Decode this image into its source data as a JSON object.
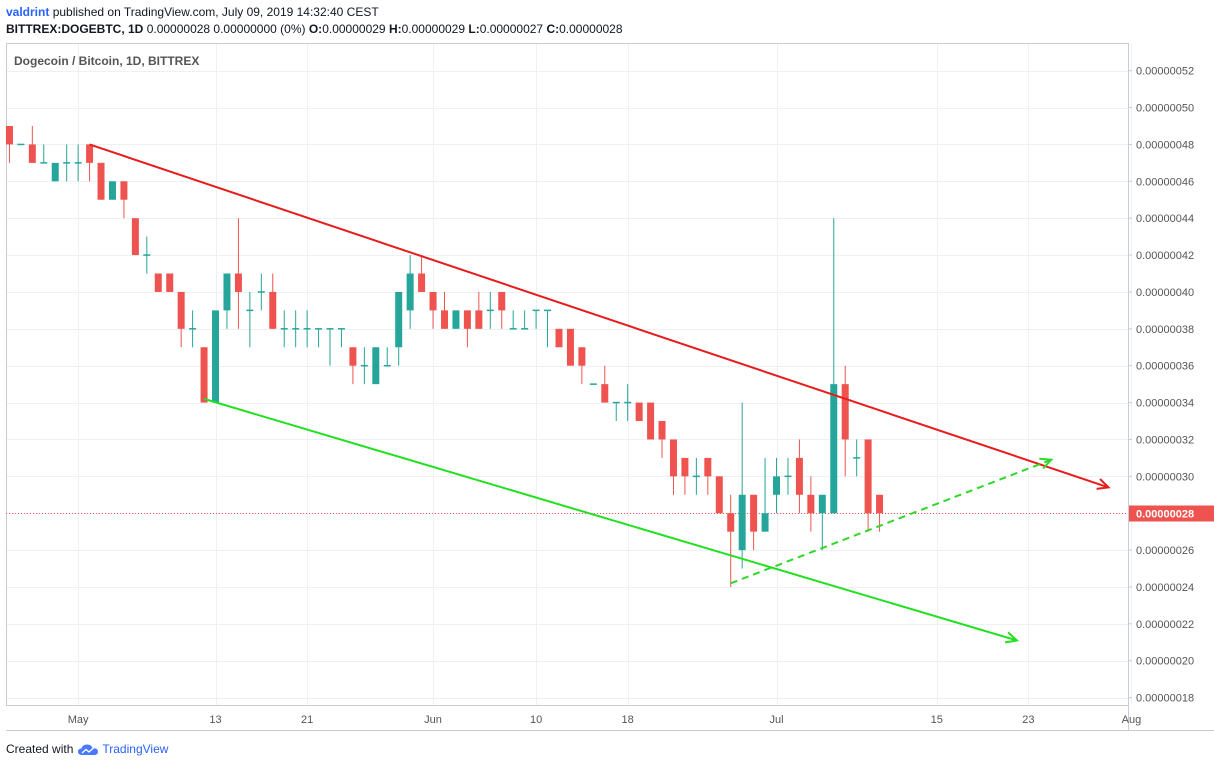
{
  "header": {
    "author": "valdrint",
    "published_text": "published on TradingView.com, July 09, 2019 14:32:40 CEST",
    "symbol": "BITTREX:DOGEBTC, 1D",
    "change": "0.00000028 0.00000000 (0%)",
    "ohlc": [
      {
        "key": "O:",
        "value": "0.00000029"
      },
      {
        "key": "H:",
        "value": "0.00000029"
      },
      {
        "key": "L:",
        "value": "0.00000027"
      },
      {
        "key": "C:",
        "value": "0.00000028"
      }
    ]
  },
  "footer": {
    "created_with": "Created with",
    "brand": "TradingView"
  },
  "colors": {
    "up": "#26a69a",
    "down": "#ef5350",
    "resistance": "#e81c1c",
    "support": "#22e01f",
    "projection": "#2fd82a",
    "price_line": "#ef5350",
    "grid": "#eef0f3",
    "axis_text": "#555555",
    "brand": "#2962ff"
  },
  "chart_data": {
    "type": "candlestick",
    "title": "Dogecoin / Bitcoin, 1D, BITTREX",
    "unit_note": "prices in satoshi (1e-8 BTC)",
    "ylim": [
      17.6,
      53.5
    ],
    "y_ticks": [
      18,
      20,
      22,
      24,
      26,
      28,
      30,
      32,
      34,
      36,
      38,
      40,
      42,
      44,
      46,
      48,
      50,
      52
    ],
    "y_tick_labels": [
      "0.00000018",
      "0.00000020",
      "0.00000022",
      "0.00000024",
      "0.00000026",
      "0.00000028",
      "0.00000030",
      "0.00000032",
      "0.00000034",
      "0.00000036",
      "0.00000038",
      "0.00000040",
      "0.00000042",
      "0.00000044",
      "0.00000046",
      "0.00000048",
      "0.00000050",
      "0.00000052"
    ],
    "x_range_days": [
      -6.3,
      91.7
    ],
    "x_ticks": [
      {
        "day": 0,
        "label": "May"
      },
      {
        "day": 12,
        "label": "13"
      },
      {
        "day": 20,
        "label": "21"
      },
      {
        "day": 31,
        "label": "Jun"
      },
      {
        "day": 40,
        "label": "10"
      },
      {
        "day": 48,
        "label": "18"
      },
      {
        "day": 61,
        "label": "Jul"
      },
      {
        "day": 75,
        "label": "15"
      },
      {
        "day": 83,
        "label": "23"
      },
      {
        "day": 92,
        "label": "Aug"
      }
    ],
    "last_price": 28,
    "last_price_label": "0.00000028",
    "candles": [
      {
        "day": -6,
        "o": 49,
        "h": 49,
        "l": 47,
        "c": 48
      },
      {
        "day": -5,
        "o": 48,
        "h": 48,
        "l": 48,
        "c": 48
      },
      {
        "day": -4,
        "o": 48,
        "h": 49,
        "l": 47,
        "c": 47
      },
      {
        "day": -3,
        "o": 47,
        "h": 48,
        "l": 47,
        "c": 47
      },
      {
        "day": -2,
        "o": 46,
        "h": 47,
        "l": 46,
        "c": 47
      },
      {
        "day": -1,
        "o": 47,
        "h": 48,
        "l": 46,
        "c": 47
      },
      {
        "day": 0,
        "o": 47,
        "h": 48,
        "l": 46,
        "c": 47
      },
      {
        "day": 1,
        "o": 48,
        "h": 48,
        "l": 46,
        "c": 47
      },
      {
        "day": 2,
        "o": 47,
        "h": 47,
        "l": 45,
        "c": 45
      },
      {
        "day": 3,
        "o": 45,
        "h": 46,
        "l": 45,
        "c": 46
      },
      {
        "day": 4,
        "o": 46,
        "h": 46,
        "l": 44,
        "c": 45
      },
      {
        "day": 5,
        "o": 44,
        "h": 44,
        "l": 42,
        "c": 42
      },
      {
        "day": 6,
        "o": 42,
        "h": 43,
        "l": 41,
        "c": 42
      },
      {
        "day": 7,
        "o": 41,
        "h": 41,
        "l": 40,
        "c": 40
      },
      {
        "day": 8,
        "o": 41,
        "h": 41,
        "l": 40,
        "c": 40
      },
      {
        "day": 9,
        "o": 40,
        "h": 40,
        "l": 37,
        "c": 38
      },
      {
        "day": 10,
        "o": 38,
        "h": 39,
        "l": 37,
        "c": 38
      },
      {
        "day": 11,
        "o": 37,
        "h": 37,
        "l": 34,
        "c": 34
      },
      {
        "day": 12,
        "o": 34,
        "h": 39,
        "l": 34,
        "c": 39
      },
      {
        "day": 13,
        "o": 39,
        "h": 41,
        "l": 38,
        "c": 41
      },
      {
        "day": 14,
        "o": 41,
        "h": 44,
        "l": 38,
        "c": 40
      },
      {
        "day": 15,
        "o": 39,
        "h": 40,
        "l": 37,
        "c": 39
      },
      {
        "day": 16,
        "o": 40,
        "h": 41,
        "l": 39,
        "c": 40
      },
      {
        "day": 17,
        "o": 40,
        "h": 41,
        "l": 38,
        "c": 38
      },
      {
        "day": 18,
        "o": 38,
        "h": 39,
        "l": 37,
        "c": 38
      },
      {
        "day": 19,
        "o": 38,
        "h": 39,
        "l": 37,
        "c": 38
      },
      {
        "day": 20,
        "o": 38,
        "h": 39,
        "l": 37,
        "c": 38
      },
      {
        "day": 21,
        "o": 38,
        "h": 38,
        "l": 37,
        "c": 38
      },
      {
        "day": 22,
        "o": 38,
        "h": 38,
        "l": 36,
        "c": 38
      },
      {
        "day": 23,
        "o": 38,
        "h": 38,
        "l": 37,
        "c": 38
      },
      {
        "day": 24,
        "o": 37,
        "h": 37,
        "l": 35,
        "c": 36
      },
      {
        "day": 25,
        "o": 36,
        "h": 37,
        "l": 35,
        "c": 36
      },
      {
        "day": 26,
        "o": 35,
        "h": 37,
        "l": 35,
        "c": 37
      },
      {
        "day": 27,
        "o": 36,
        "h": 37,
        "l": 36,
        "c": 36
      },
      {
        "day": 28,
        "o": 37,
        "h": 40,
        "l": 36,
        "c": 40
      },
      {
        "day": 29,
        "o": 39,
        "h": 42,
        "l": 38,
        "c": 41
      },
      {
        "day": 30,
        "o": 41,
        "h": 42,
        "l": 40,
        "c": 40
      },
      {
        "day": 31,
        "o": 40,
        "h": 40,
        "l": 38,
        "c": 39
      },
      {
        "day": 32,
        "o": 39,
        "h": 40,
        "l": 38,
        "c": 38
      },
      {
        "day": 33,
        "o": 38,
        "h": 39,
        "l": 38,
        "c": 39
      },
      {
        "day": 34,
        "o": 39,
        "h": 39,
        "l": 37,
        "c": 38
      },
      {
        "day": 35,
        "o": 39,
        "h": 40,
        "l": 38,
        "c": 38
      },
      {
        "day": 36,
        "o": 39,
        "h": 40,
        "l": 38,
        "c": 39
      },
      {
        "day": 37,
        "o": 40,
        "h": 40,
        "l": 38,
        "c": 39
      },
      {
        "day": 38,
        "o": 38,
        "h": 39,
        "l": 38,
        "c": 38
      },
      {
        "day": 39,
        "o": 38,
        "h": 39,
        "l": 38,
        "c": 38
      },
      {
        "day": 40,
        "o": 39,
        "h": 39,
        "l": 38,
        "c": 39
      },
      {
        "day": 41,
        "o": 39,
        "h": 39,
        "l": 37,
        "c": 39
      },
      {
        "day": 42,
        "o": 38,
        "h": 38,
        "l": 37,
        "c": 37
      },
      {
        "day": 43,
        "o": 38,
        "h": 38,
        "l": 36,
        "c": 36
      },
      {
        "day": 44,
        "o": 37,
        "h": 37,
        "l": 35,
        "c": 36
      },
      {
        "day": 45,
        "o": 35,
        "h": 35,
        "l": 35,
        "c": 35
      },
      {
        "day": 46,
        "o": 35,
        "h": 36,
        "l": 34,
        "c": 34
      },
      {
        "day": 47,
        "o": 34,
        "h": 34,
        "l": 33,
        "c": 34
      },
      {
        "day": 48,
        "o": 34,
        "h": 35,
        "l": 33,
        "c": 34
      },
      {
        "day": 49,
        "o": 34,
        "h": 34,
        "l": 33,
        "c": 33
      },
      {
        "day": 50,
        "o": 34,
        "h": 34,
        "l": 32,
        "c": 32
      },
      {
        "day": 51,
        "o": 33,
        "h": 33,
        "l": 31,
        "c": 32
      },
      {
        "day": 52,
        "o": 32,
        "h": 32,
        "l": 29,
        "c": 30
      },
      {
        "day": 53,
        "o": 31,
        "h": 31,
        "l": 29,
        "c": 30
      },
      {
        "day": 54,
        "o": 30,
        "h": 31,
        "l": 29,
        "c": 30
      },
      {
        "day": 55,
        "o": 31,
        "h": 31,
        "l": 29,
        "c": 30
      },
      {
        "day": 56,
        "o": 30,
        "h": 30,
        "l": 28,
        "c": 28
      },
      {
        "day": 57,
        "o": 28,
        "h": 29,
        "l": 24,
        "c": 27
      },
      {
        "day": 58,
        "o": 26,
        "h": 34,
        "l": 25,
        "c": 29
      },
      {
        "day": 59,
        "o": 29,
        "h": 29,
        "l": 26,
        "c": 27
      },
      {
        "day": 60,
        "o": 27,
        "h": 31,
        "l": 27,
        "c": 28
      },
      {
        "day": 61,
        "o": 29,
        "h": 31,
        "l": 28,
        "c": 30
      },
      {
        "day": 62,
        "o": 30,
        "h": 31,
        "l": 29,
        "c": 30
      },
      {
        "day": 63,
        "o": 31,
        "h": 32,
        "l": 28,
        "c": 29
      },
      {
        "day": 64,
        "o": 29,
        "h": 30,
        "l": 27,
        "c": 28
      },
      {
        "day": 65,
        "o": 28,
        "h": 29,
        "l": 26,
        "c": 29
      },
      {
        "day": 66,
        "o": 28,
        "h": 44,
        "l": 28,
        "c": 35
      },
      {
        "day": 67,
        "o": 35,
        "h": 36,
        "l": 30,
        "c": 32
      },
      {
        "day": 68,
        "o": 31,
        "h": 32,
        "l": 30,
        "c": 31
      },
      {
        "day": 69,
        "o": 32,
        "h": 32,
        "l": 27,
        "c": 28
      },
      {
        "day": 70,
        "o": 29,
        "h": 29,
        "l": 27,
        "c": 28
      }
    ],
    "trendlines": [
      {
        "name": "resistance",
        "style": "solid",
        "arrow": true,
        "from": {
          "day": 1,
          "price": 48
        },
        "to": {
          "day": 90,
          "price": 29.4
        }
      },
      {
        "name": "support",
        "style": "solid",
        "arrow": true,
        "from": {
          "day": 11,
          "price": 34.2
        },
        "to": {
          "day": 82,
          "price": 21.1
        }
      },
      {
        "name": "rising-support",
        "style": "dashed",
        "arrow": true,
        "from": {
          "day": 57,
          "price": 24.2
        },
        "to": {
          "day": 85,
          "price": 30.9
        }
      }
    ]
  }
}
